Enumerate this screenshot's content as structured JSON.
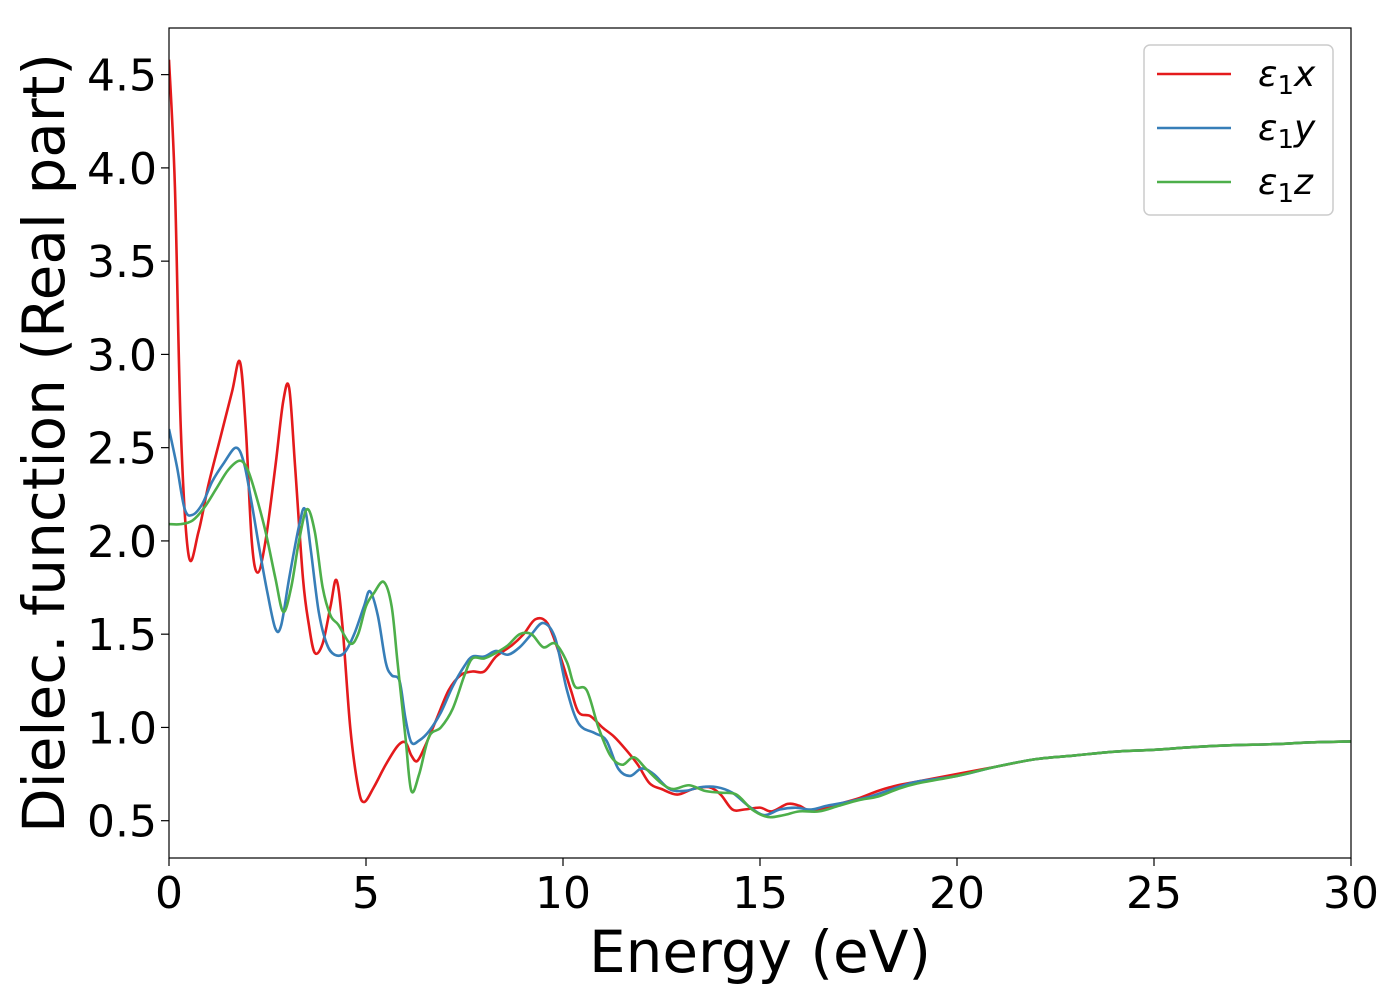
{
  "chart_data": {
    "type": "line",
    "xlabel": "Energy (eV)",
    "ylabel": "Dielec. function (Real part)",
    "xlim": [
      0,
      30
    ],
    "ylim": [
      0.3,
      4.75
    ],
    "xticks": [
      0,
      5,
      10,
      15,
      20,
      25,
      30
    ],
    "xtick_labels": [
      "0",
      "5",
      "10",
      "15",
      "20",
      "25",
      "30"
    ],
    "yticks": [
      0.5,
      1.0,
      1.5,
      2.0,
      2.5,
      3.0,
      3.5,
      4.0,
      4.5
    ],
    "ytick_labels": [
      "0.5",
      "1.0",
      "1.5",
      "2.0",
      "2.5",
      "3.0",
      "3.5",
      "4.0",
      "4.5"
    ],
    "grid": false,
    "legend_position": "top-right",
    "series": [
      {
        "name": "ε₁x",
        "legend_main": "ε",
        "legend_sub": "1",
        "legend_var": "x",
        "color": "#e41a1c",
        "points": [
          [
            0,
            4.58
          ],
          [
            0.15,
            3.9
          ],
          [
            0.3,
            2.6
          ],
          [
            0.5,
            1.92
          ],
          [
            0.75,
            2.05
          ],
          [
            1.0,
            2.3
          ],
          [
            1.3,
            2.55
          ],
          [
            1.6,
            2.8
          ],
          [
            1.8,
            2.96
          ],
          [
            1.95,
            2.6
          ],
          [
            2.1,
            2.0
          ],
          [
            2.25,
            1.83
          ],
          [
            2.45,
            2.0
          ],
          [
            2.7,
            2.4
          ],
          [
            2.9,
            2.75
          ],
          [
            3.05,
            2.82
          ],
          [
            3.2,
            2.4
          ],
          [
            3.4,
            1.8
          ],
          [
            3.55,
            1.55
          ],
          [
            3.7,
            1.4
          ],
          [
            3.9,
            1.45
          ],
          [
            4.1,
            1.65
          ],
          [
            4.25,
            1.79
          ],
          [
            4.4,
            1.55
          ],
          [
            4.6,
            1.0
          ],
          [
            4.8,
            0.68
          ],
          [
            4.95,
            0.6
          ],
          [
            5.2,
            0.68
          ],
          [
            5.5,
            0.8
          ],
          [
            5.8,
            0.9
          ],
          [
            6.0,
            0.92
          ],
          [
            6.15,
            0.85
          ],
          [
            6.3,
            0.82
          ],
          [
            6.5,
            0.9
          ],
          [
            6.8,
            1.05
          ],
          [
            7.1,
            1.2
          ],
          [
            7.4,
            1.28
          ],
          [
            7.7,
            1.3
          ],
          [
            8.0,
            1.3
          ],
          [
            8.3,
            1.38
          ],
          [
            8.7,
            1.44
          ],
          [
            9.0,
            1.5
          ],
          [
            9.3,
            1.58
          ],
          [
            9.6,
            1.56
          ],
          [
            9.9,
            1.4
          ],
          [
            10.2,
            1.2
          ],
          [
            10.4,
            1.08
          ],
          [
            10.7,
            1.06
          ],
          [
            11.0,
            1.0
          ],
          [
            11.3,
            0.95
          ],
          [
            11.6,
            0.88
          ],
          [
            11.9,
            0.8
          ],
          [
            12.2,
            0.7
          ],
          [
            12.5,
            0.67
          ],
          [
            12.9,
            0.64
          ],
          [
            13.3,
            0.67
          ],
          [
            13.7,
            0.68
          ],
          [
            14.0,
            0.64
          ],
          [
            14.3,
            0.56
          ],
          [
            14.6,
            0.56
          ],
          [
            15.0,
            0.57
          ],
          [
            15.3,
            0.55
          ],
          [
            15.7,
            0.59
          ],
          [
            16.0,
            0.58
          ],
          [
            16.3,
            0.55
          ],
          [
            16.7,
            0.57
          ],
          [
            17.0,
            0.59
          ],
          [
            17.5,
            0.62
          ],
          [
            18.0,
            0.66
          ],
          [
            18.5,
            0.69
          ],
          [
            19.0,
            0.71
          ],
          [
            20.0,
            0.75
          ],
          [
            21.0,
            0.79
          ],
          [
            22.0,
            0.83
          ],
          [
            23.0,
            0.85
          ],
          [
            24.0,
            0.87
          ],
          [
            25.0,
            0.88
          ],
          [
            26.0,
            0.895
          ],
          [
            27.0,
            0.905
          ],
          [
            28.0,
            0.91
          ],
          [
            29.0,
            0.92
          ],
          [
            30.0,
            0.925
          ]
        ]
      },
      {
        "name": "ε₁y",
        "legend_main": "ε",
        "legend_sub": "1",
        "legend_var": "y",
        "color": "#377eb8",
        "points": [
          [
            0,
            2.6
          ],
          [
            0.2,
            2.4
          ],
          [
            0.4,
            2.17
          ],
          [
            0.6,
            2.14
          ],
          [
            0.85,
            2.2
          ],
          [
            1.1,
            2.32
          ],
          [
            1.4,
            2.42
          ],
          [
            1.7,
            2.5
          ],
          [
            1.9,
            2.42
          ],
          [
            2.1,
            2.2
          ],
          [
            2.3,
            1.95
          ],
          [
            2.5,
            1.72
          ],
          [
            2.7,
            1.53
          ],
          [
            2.85,
            1.55
          ],
          [
            3.05,
            1.8
          ],
          [
            3.3,
            2.08
          ],
          [
            3.45,
            2.17
          ],
          [
            3.6,
            1.95
          ],
          [
            3.8,
            1.62
          ],
          [
            4.0,
            1.45
          ],
          [
            4.2,
            1.39
          ],
          [
            4.45,
            1.4
          ],
          [
            4.7,
            1.5
          ],
          [
            4.95,
            1.65
          ],
          [
            5.1,
            1.73
          ],
          [
            5.3,
            1.6
          ],
          [
            5.5,
            1.35
          ],
          [
            5.65,
            1.28
          ],
          [
            5.85,
            1.25
          ],
          [
            6.0,
            1.05
          ],
          [
            6.15,
            0.92
          ],
          [
            6.35,
            0.93
          ],
          [
            6.6,
            0.98
          ],
          [
            6.9,
            1.08
          ],
          [
            7.2,
            1.22
          ],
          [
            7.5,
            1.33
          ],
          [
            7.7,
            1.38
          ],
          [
            8.0,
            1.38
          ],
          [
            8.3,
            1.41
          ],
          [
            8.6,
            1.39
          ],
          [
            8.9,
            1.43
          ],
          [
            9.2,
            1.5
          ],
          [
            9.5,
            1.56
          ],
          [
            9.8,
            1.48
          ],
          [
            10.1,
            1.2
          ],
          [
            10.4,
            1.02
          ],
          [
            10.8,
            0.97
          ],
          [
            11.1,
            0.93
          ],
          [
            11.4,
            0.78
          ],
          [
            11.7,
            0.74
          ],
          [
            12.0,
            0.78
          ],
          [
            12.3,
            0.75
          ],
          [
            12.7,
            0.67
          ],
          [
            13.1,
            0.66
          ],
          [
            13.5,
            0.68
          ],
          [
            13.9,
            0.68
          ],
          [
            14.3,
            0.65
          ],
          [
            14.7,
            0.58
          ],
          [
            15.1,
            0.53
          ],
          [
            15.5,
            0.56
          ],
          [
            15.9,
            0.57
          ],
          [
            16.3,
            0.56
          ],
          [
            16.7,
            0.58
          ],
          [
            17.2,
            0.6
          ],
          [
            17.8,
            0.63
          ],
          [
            18.5,
            0.68
          ],
          [
            19.0,
            0.71
          ],
          [
            20.0,
            0.74
          ],
          [
            21.0,
            0.79
          ],
          [
            22.0,
            0.83
          ],
          [
            23.0,
            0.85
          ],
          [
            24.0,
            0.87
          ],
          [
            25.0,
            0.88
          ],
          [
            26.0,
            0.895
          ],
          [
            27.0,
            0.905
          ],
          [
            28.0,
            0.91
          ],
          [
            29.0,
            0.92
          ],
          [
            30.0,
            0.925
          ]
        ]
      },
      {
        "name": "ε₁z",
        "legend_main": "ε",
        "legend_sub": "1",
        "legend_var": "z",
        "color": "#4daf4a",
        "points": [
          [
            0,
            2.09
          ],
          [
            0.3,
            2.09
          ],
          [
            0.6,
            2.11
          ],
          [
            0.9,
            2.18
          ],
          [
            1.2,
            2.28
          ],
          [
            1.5,
            2.38
          ],
          [
            1.8,
            2.43
          ],
          [
            2.0,
            2.38
          ],
          [
            2.2,
            2.25
          ],
          [
            2.45,
            2.05
          ],
          [
            2.7,
            1.8
          ],
          [
            2.9,
            1.62
          ],
          [
            3.1,
            1.75
          ],
          [
            3.3,
            2.0
          ],
          [
            3.5,
            2.17
          ],
          [
            3.7,
            2.05
          ],
          [
            3.9,
            1.75
          ],
          [
            4.1,
            1.6
          ],
          [
            4.3,
            1.55
          ],
          [
            4.6,
            1.45
          ],
          [
            4.8,
            1.5
          ],
          [
            5.0,
            1.65
          ],
          [
            5.2,
            1.72
          ],
          [
            5.45,
            1.78
          ],
          [
            5.65,
            1.65
          ],
          [
            5.8,
            1.35
          ],
          [
            6.0,
            0.95
          ],
          [
            6.15,
            0.66
          ],
          [
            6.35,
            0.75
          ],
          [
            6.6,
            0.95
          ],
          [
            6.9,
            1.0
          ],
          [
            7.2,
            1.1
          ],
          [
            7.5,
            1.28
          ],
          [
            7.7,
            1.37
          ],
          [
            8.0,
            1.37
          ],
          [
            8.3,
            1.4
          ],
          [
            8.6,
            1.44
          ],
          [
            8.9,
            1.5
          ],
          [
            9.2,
            1.5
          ],
          [
            9.5,
            1.43
          ],
          [
            9.8,
            1.45
          ],
          [
            10.1,
            1.35
          ],
          [
            10.3,
            1.22
          ],
          [
            10.6,
            1.2
          ],
          [
            10.9,
            1.0
          ],
          [
            11.2,
            0.85
          ],
          [
            11.5,
            0.8
          ],
          [
            11.8,
            0.84
          ],
          [
            12.1,
            0.78
          ],
          [
            12.5,
            0.7
          ],
          [
            12.8,
            0.67
          ],
          [
            13.2,
            0.69
          ],
          [
            13.6,
            0.66
          ],
          [
            14.0,
            0.65
          ],
          [
            14.4,
            0.64
          ],
          [
            14.8,
            0.56
          ],
          [
            15.2,
            0.52
          ],
          [
            15.6,
            0.53
          ],
          [
            16.0,
            0.55
          ],
          [
            16.5,
            0.55
          ],
          [
            17.0,
            0.58
          ],
          [
            17.5,
            0.61
          ],
          [
            18.0,
            0.63
          ],
          [
            18.5,
            0.67
          ],
          [
            19.0,
            0.7
          ],
          [
            20.0,
            0.74
          ],
          [
            21.0,
            0.79
          ],
          [
            22.0,
            0.83
          ],
          [
            23.0,
            0.85
          ],
          [
            24.0,
            0.87
          ],
          [
            25.0,
            0.88
          ],
          [
            26.0,
            0.895
          ],
          [
            27.0,
            0.905
          ],
          [
            28.0,
            0.91
          ],
          [
            29.0,
            0.92
          ],
          [
            30.0,
            0.925
          ]
        ]
      }
    ]
  }
}
